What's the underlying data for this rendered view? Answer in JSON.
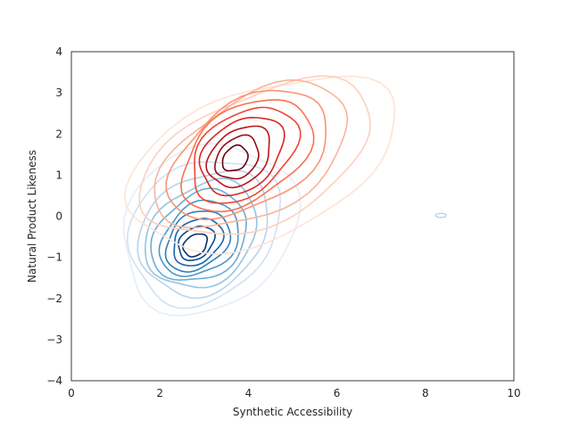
{
  "chart_data": {
    "type": "contour",
    "title": "",
    "xlabel": "Synthetic Accessibility",
    "ylabel": "Natural Product Likeness",
    "xlim": [
      0,
      10
    ],
    "ylim": [
      -4,
      4
    ],
    "xticks": [
      "0",
      "2",
      "4",
      "6",
      "8",
      "10"
    ],
    "yticks": [
      "4",
      "3",
      "2",
      "1",
      "0",
      "−1",
      "−2",
      "−3",
      "−4"
    ],
    "grid": false,
    "legend": "none",
    "series": [
      {
        "colormap": "Blues",
        "colors": [
          "#e4eef9",
          "#d0e1f2",
          "#b7d4ea",
          "#94c4df",
          "#6aaed6",
          "#4a98c9",
          "#2e7ebc",
          "#1764ab",
          "#084a91",
          "#08306b"
        ],
        "density_peak": [
          2.8,
          -0.7
        ],
        "levels": [
          {
            "cx": 3.1,
            "cy": -0.3,
            "rx": 2.1,
            "ry": 1.9,
            "rot": -40
          },
          {
            "cx": 3.0,
            "cy": -0.35,
            "rx": 1.85,
            "ry": 1.6,
            "rot": -40
          },
          {
            "cx": 3.0,
            "cy": -0.4,
            "rx": 1.6,
            "ry": 1.35,
            "rot": -40
          },
          {
            "cx": 2.95,
            "cy": -0.45,
            "rx": 1.38,
            "ry": 1.15,
            "rot": -40
          },
          {
            "cx": 2.9,
            "cy": -0.5,
            "rx": 1.18,
            "ry": 0.98,
            "rot": -40
          },
          {
            "cx": 2.9,
            "cy": -0.55,
            "rx": 0.98,
            "ry": 0.8,
            "rot": -40
          },
          {
            "cx": 2.85,
            "cy": -0.6,
            "rx": 0.8,
            "ry": 0.64,
            "rot": -40
          },
          {
            "cx": 2.85,
            "cy": -0.62,
            "rx": 0.62,
            "ry": 0.5,
            "rot": -40
          },
          {
            "cx": 2.82,
            "cy": -0.65,
            "rx": 0.45,
            "ry": 0.36,
            "rot": -40
          },
          {
            "cx": 2.8,
            "cy": -0.7,
            "rx": 0.3,
            "ry": 0.24,
            "rot": -40
          }
        ],
        "satellite": {
          "cx": 8.35,
          "cy": 0.02,
          "rx": 0.12,
          "ry": 0.05
        }
      },
      {
        "colormap": "Reds",
        "colors": [
          "#fee3d6",
          "#fdd0bc",
          "#fcb398",
          "#fc9272",
          "#fb7050",
          "#f14432",
          "#d92723",
          "#bb141a",
          "#980c13",
          "#67000d"
        ],
        "density_peak": [
          3.7,
          1.4
        ],
        "levels": [
          {
            "cx": 4.3,
            "cy": 1.3,
            "rx": 3.2,
            "ry": 1.8,
            "rot": -22
          },
          {
            "cx": 4.2,
            "cy": 1.4,
            "rx": 2.8,
            "ry": 1.55,
            "rot": -25
          },
          {
            "cx": 4.1,
            "cy": 1.45,
            "rx": 2.4,
            "ry": 1.4,
            "rot": -30
          },
          {
            "cx": 4.0,
            "cy": 1.5,
            "rx": 2.0,
            "ry": 1.25,
            "rot": -32
          },
          {
            "cx": 3.95,
            "cy": 1.5,
            "rx": 1.65,
            "ry": 1.1,
            "rot": -35
          },
          {
            "cx": 3.9,
            "cy": 1.5,
            "rx": 1.35,
            "ry": 0.95,
            "rot": -38
          },
          {
            "cx": 3.85,
            "cy": 1.48,
            "rx": 1.05,
            "ry": 0.8,
            "rot": -40
          },
          {
            "cx": 3.8,
            "cy": 1.45,
            "rx": 0.8,
            "ry": 0.62,
            "rot": -42
          },
          {
            "cx": 3.75,
            "cy": 1.42,
            "rx": 0.55,
            "ry": 0.45,
            "rot": -45
          },
          {
            "cx": 3.7,
            "cy": 1.4,
            "rx": 0.32,
            "ry": 0.27,
            "rot": -45
          }
        ]
      }
    ]
  }
}
